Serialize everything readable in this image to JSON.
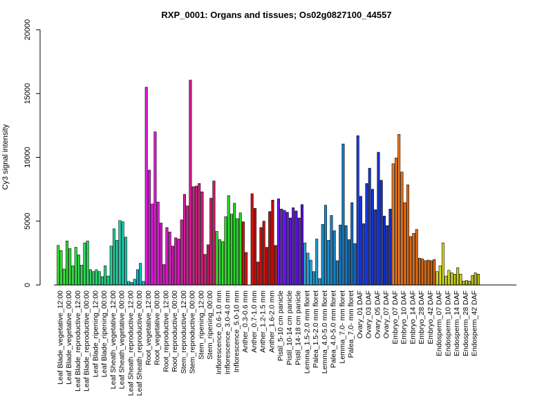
{
  "chart_data": {
    "type": "bar",
    "title": "RXP_0001: Organs and tissues; Os02g0827100_44557",
    "xlabel": "",
    "ylabel": "Cy3 signal intensity",
    "ylim": [
      0,
      20000
    ],
    "yticks": [
      0,
      5000,
      10000,
      15000,
      20000
    ],
    "grid": false,
    "categories": [
      "Leaf Blade_vegetative_12:00",
      "Leaf Blade_vegetative_00:00",
      "Leaf Blade_reproductive_12:00",
      "Leaf Blade_reproductive_00:00",
      "Leaf Blade_ripening_12:00",
      "Leaf Blade_ripening_00:00",
      "Leaf Sheath_vegetative_12:00",
      "Leaf Sheath_vegetative_00:00",
      "Leaf Sheath_reproductive_12:00",
      "Leaf Sheath_reproductive_00:00",
      "Root_vegetative_12:00",
      "Root_vegetative_00:00",
      "Root_reproductive_12:00",
      "Root_reproductive_00:00",
      "Stem_reproductive_12:00",
      "Stem_reproductive_00:00",
      "Stem_ripening_12:00",
      "Stem_ripening_00:00",
      "Inflorescence_0.6-1.0 mm",
      "Inflorescence_3.0-4.0 mm",
      "Inflorescence_5.0-10 mm",
      "Anther_0.3-0.6 mm",
      "Anther_0.7-1.0 mm",
      "Anther_1.2-1.5 mm",
      "Anther_1.6-2.0 mm",
      "Pistil_5-10 cm panicle",
      "Pistil_10-14 cm panicle",
      "Pistil_14-18 cm panicle",
      "Lemma_1.5-2.0 mm floret",
      "Palea_1.5-2.0 mm floret",
      "Lemma_4.0-5.0 mm floret",
      "Palea_4.0-5.0 mm floret",
      "Lemma_7.0- mm floret",
      "Palea_7.0- mm floret",
      "Ovary_01 DAF",
      "Ovary_03 DAF",
      "Ovary_05 DAF",
      "Ovary_07 DAF",
      "Embryo_07 DAF",
      "Embryo_10 DAF",
      "Embryo_14 DAF",
      "Embryo_28 DAF",
      "Embryo_42 DAF",
      "Endosperm_07 DAF",
      "Endosperm_10 DAF",
      "Endosperm_14 DAF",
      "Endosperm_28 DAF",
      "Endosperm_42 DAF"
    ],
    "values": [
      [
        3100,
        2700,
        1250
      ],
      [
        3450,
        2850,
        1500
      ],
      [
        2950,
        2350,
        1550
      ],
      [
        3300,
        3450,
        1200
      ],
      [
        1050,
        1200,
        1050
      ],
      [
        650,
        1500,
        700
      ],
      [
        3050,
        4400,
        3500
      ],
      [
        5050,
        4950,
        3750
      ],
      [
        280,
        200,
        450
      ],
      [
        1200,
        1700,
        280
      ],
      [
        15500,
        9000,
        6350
      ],
      [
        12000,
        6500,
        4850
      ],
      [
        1600,
        4500,
        4150
      ],
      [
        3050,
        3700,
        3600
      ],
      [
        5100,
        7100,
        6200
      ],
      [
        16050,
        7700,
        7750
      ],
      [
        7950,
        7300,
        2400
      ],
      [
        3150,
        6800,
        8150
      ],
      [
        4200,
        3550,
        3400
      ],
      [
        5350,
        7000,
        5550
      ],
      [
        6400,
        5200,
        5650
      ],
      [
        4950,
        2550,
        0
      ],
      [
        7150,
        6000,
        1800
      ],
      [
        4500,
        5000,
        2950
      ],
      [
        5750,
        6650,
        3100
      ],
      [
        6750,
        5950,
        5850
      ],
      [
        5700,
        5250,
        6050
      ],
      [
        5800,
        5250,
        6300
      ],
      [
        3300,
        2500,
        1950
      ],
      [
        1050,
        3600,
        500
      ],
      [
        4750,
        6250,
        3500
      ],
      [
        5450,
        4250,
        1900
      ],
      [
        4700,
        11050,
        4650
      ],
      [
        3550,
        6450,
        3250
      ],
      [
        11700,
        6950,
        4800
      ],
      [
        7950,
        9150,
        7500
      ],
      [
        5900,
        10400,
        8200
      ],
      [
        5400,
        4650,
        5950
      ],
      [
        9500,
        9950,
        11800
      ],
      [
        8850,
        6450,
        7850
      ],
      [
        3800,
        4050,
        4350
      ],
      [
        2100,
        2050,
        1900
      ],
      [
        1950,
        1900,
        2000
      ],
      [
        1050,
        1500,
        3300
      ],
      [
        700,
        1150,
        950
      ],
      [
        850,
        1350,
        850
      ],
      [
        300,
        350,
        300
      ],
      [
        750,
        950,
        850
      ]
    ],
    "colors": [
      "#34e831",
      "#2fe43d",
      "#2be24b",
      "#28e05b",
      "#21dc70",
      "#1cd882",
      "#22d49a",
      "#1dd0b2",
      "#12c8c2",
      "#10bfc8",
      "#e01ce0",
      "#dc1cd0",
      "#d81cc4",
      "#d41cb8",
      "#d81aa0",
      "#d81a8c",
      "#d41a7a",
      "#d01a6a",
      "#36e036",
      "#2cdc2c",
      "#22d822",
      "#dc1414",
      "#d01010",
      "#c80e0e",
      "#c00c0c",
      "#6a1cf0",
      "#6018e0",
      "#5a14d8",
      "#23a8e0",
      "#1f9cd8",
      "#1b90d0",
      "#1884c8",
      "#1678c0",
      "#146cb8",
      "#1a3ce0",
      "#1838d8",
      "#1634d0",
      "#1430c8",
      "#f07818",
      "#e87014",
      "#e06c14",
      "#d86812",
      "#d06410",
      "#d8e020",
      "#d0d81c",
      "#c8d018",
      "#c0c814",
      "#b8c010"
    ]
  }
}
